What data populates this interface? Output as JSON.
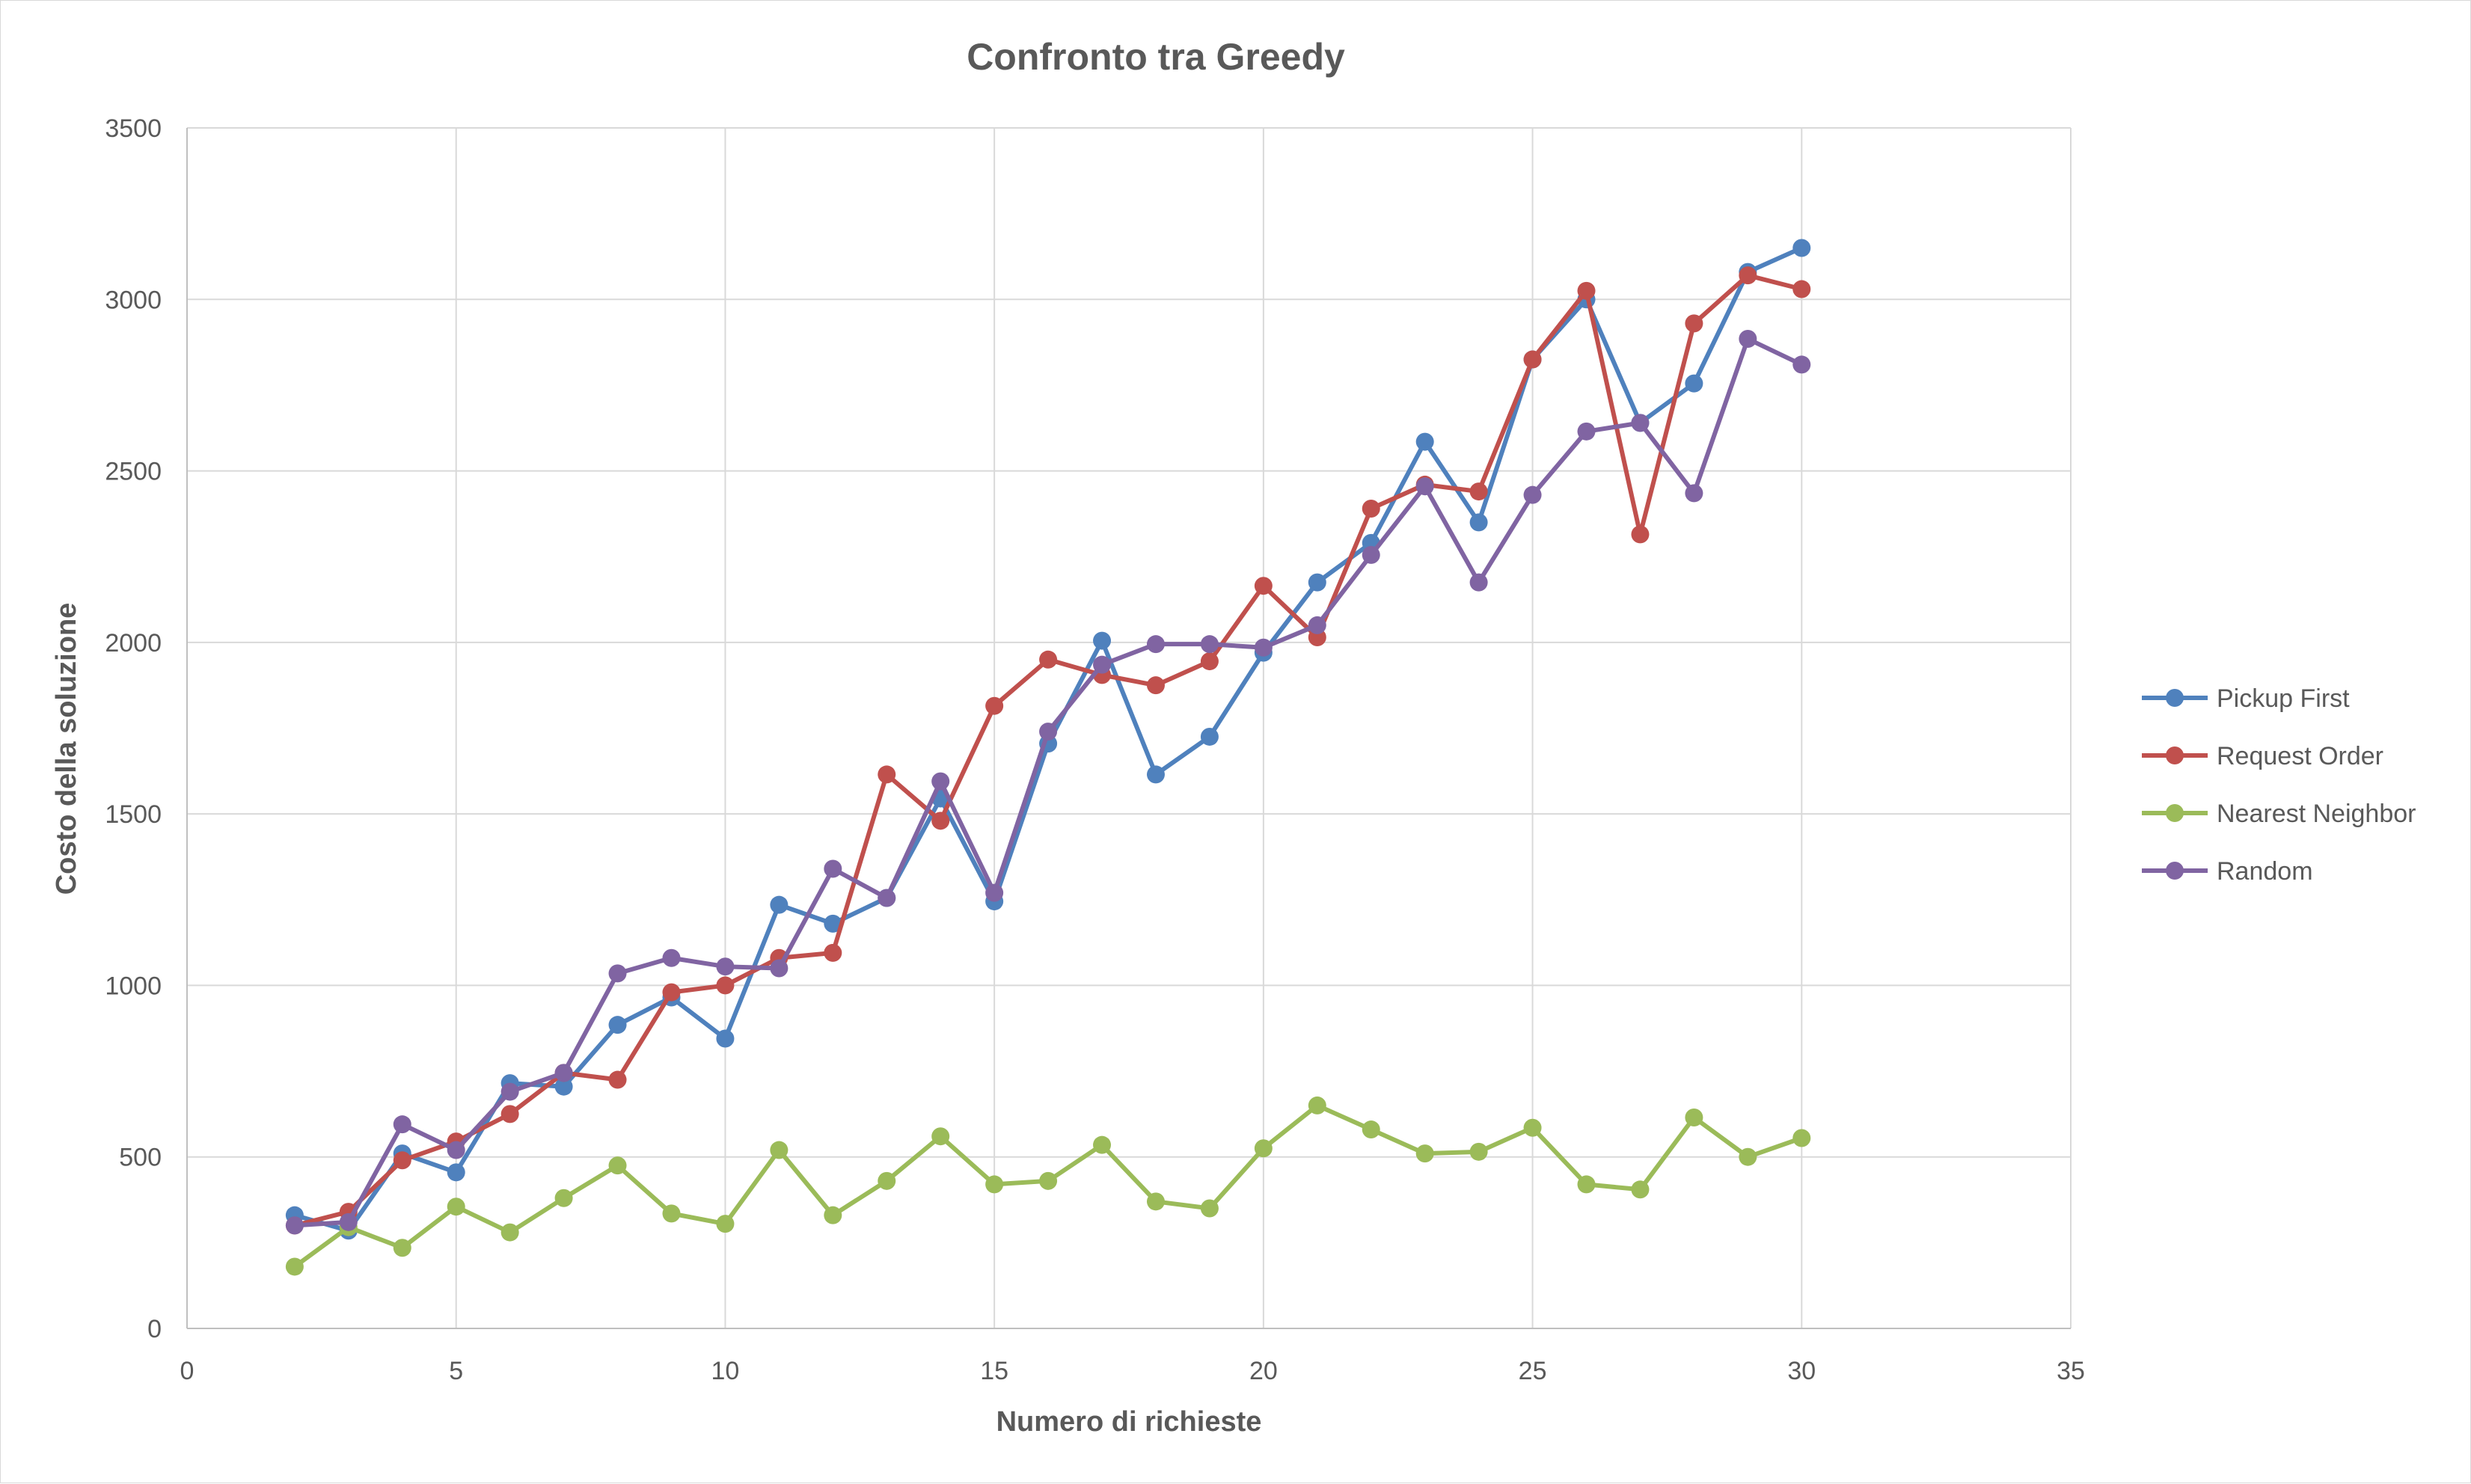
{
  "chart_data": {
    "type": "line",
    "title": "Confronto tra Greedy",
    "xlabel": "Numero di richieste",
    "ylabel": "Costo della soluzione",
    "xlim": [
      0,
      35
    ],
    "ylim": [
      0,
      3500
    ],
    "xticks": [
      0,
      5,
      10,
      15,
      20,
      25,
      30,
      35
    ],
    "yticks": [
      0,
      500,
      1000,
      1500,
      2000,
      2500,
      3000,
      3500
    ],
    "grid": true,
    "legend_position": "right",
    "x": [
      2,
      3,
      4,
      5,
      6,
      7,
      8,
      9,
      10,
      11,
      12,
      13,
      14,
      15,
      16,
      17,
      18,
      19,
      20,
      21,
      22,
      23,
      24,
      25,
      26,
      27,
      28,
      29,
      30
    ],
    "series": [
      {
        "name": "Pickup First",
        "color": "#4f81bd",
        "values": [
          330,
          285,
          510,
          455,
          715,
          705,
          885,
          965,
          845,
          1235,
          1180,
          1255,
          1545,
          1245,
          1705,
          2005,
          1615,
          1725,
          1970,
          2175,
          2290,
          2585,
          2350,
          2825,
          3000,
          2640,
          2755,
          3080,
          3150
        ]
      },
      {
        "name": "Request Order",
        "color": "#c0504d",
        "values": [
          300,
          340,
          490,
          545,
          625,
          745,
          725,
          980,
          1000,
          1080,
          1095,
          1615,
          1480,
          1815,
          1950,
          1905,
          1875,
          1945,
          2165,
          2015,
          2390,
          2460,
          2440,
          2825,
          3025,
          2315,
          2930,
          3070,
          3030
        ]
      },
      {
        "name": "Nearest Neighbor",
        "color": "#9bbb59",
        "values": [
          180,
          295,
          235,
          355,
          280,
          380,
          475,
          335,
          305,
          520,
          330,
          430,
          560,
          420,
          430,
          535,
          370,
          350,
          525,
          650,
          580,
          510,
          515,
          585,
          420,
          405,
          615,
          500,
          555
        ]
      },
      {
        "name": "Random",
        "color": "#8064a2",
        "values": [
          300,
          310,
          595,
          520,
          690,
          745,
          1035,
          1080,
          1055,
          1050,
          1340,
          1255,
          1595,
          1270,
          1740,
          1935,
          1995,
          1995,
          1985,
          2050,
          2255,
          2455,
          2175,
          2430,
          2615,
          2640,
          2435,
          2885,
          2810
        ]
      }
    ]
  }
}
